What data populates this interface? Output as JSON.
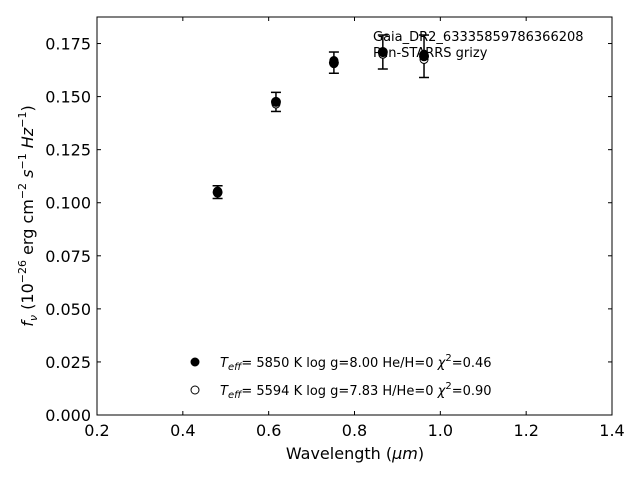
{
  "chart_data": {
    "type": "scatter",
    "xlabel_main": "Wavelength (",
    "xlabel_unit": "μm",
    "xlabel_close": ")",
    "ylabel_prefix": "f",
    "ylabel_sub": "ν",
    "ylabel_rest": "(10",
    "ylabel_exp": "−26",
    "ylabel_rest2": "erg cm",
    "ylabel_exp2": "−2",
    "ylabel_rest3": "s",
    "ylabel_exp3": "−1",
    "ylabel_rest4": "Hz",
    "ylabel_exp4": "−1",
    "ylabel_close": ")",
    "xlim": [
      0.2,
      1.4
    ],
    "ylim": [
      0.0,
      0.1875
    ],
    "xticks": [
      "0.2",
      "0.4",
      "0.6",
      "0.8",
      "1.0",
      "1.2",
      "1.4"
    ],
    "yticks": [
      "0.000",
      "0.025",
      "0.050",
      "0.075",
      "0.100",
      "0.125",
      "0.150",
      "0.175"
    ],
    "annotation_line1": "Gaia_DR2_633358597863662 08",
    "annotation_line1_exact": "Gaia_DR2_63335859786366208",
    "annotation_line2": "Pan-STARRS grizy",
    "observed": {
      "x": [
        0.481,
        0.617,
        0.752,
        0.866,
        0.962
      ],
      "y": [
        0.105,
        0.1475,
        0.166,
        0.171,
        0.169
      ],
      "yerr": [
        0.003,
        0.0045,
        0.005,
        0.008,
        0.01
      ]
    },
    "series": [
      {
        "name": "model1",
        "marker": "filled",
        "x": [
          0.481,
          0.617,
          0.752,
          0.866,
          0.962
        ],
        "y": [
          0.1055,
          0.1475,
          0.167,
          0.17,
          0.17
        ]
      },
      {
        "name": "model2",
        "marker": "open",
        "x": [
          0.481,
          0.617,
          0.752,
          0.866,
          0.962
        ],
        "y": [
          0.1045,
          0.1465,
          0.1655,
          0.17,
          0.1675
        ]
      }
    ],
    "legend": [
      {
        "t": "T",
        "tsub": "eff",
        "text": "=  5850 K  log g=8.00  He/H=0  ",
        "chi": "χ",
        "chisup": "2",
        "val": "=0.46"
      },
      {
        "t": "T",
        "tsub": "eff",
        "text": "=  5594 K  log g=7.83  H/He=0  ",
        "chi": "χ",
        "chisup": "2",
        "val": "=0.90"
      }
    ],
    "legend_position": "bottom-center"
  }
}
